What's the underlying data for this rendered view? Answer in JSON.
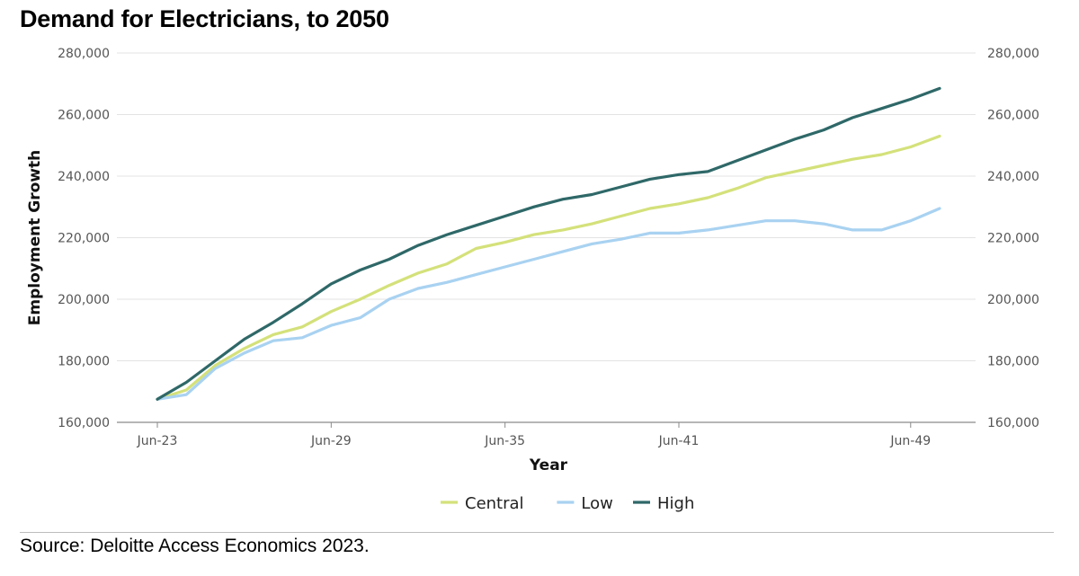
{
  "title": "Demand for Electricians, to 2050",
  "source": "Source: Deloitte Access Economics 2023.",
  "chart_data": {
    "type": "line",
    "title": "Demand for Electricians, to 2050",
    "xlabel": "Year",
    "ylabel": "Employment Growth",
    "x_tick_labels": [
      "Jun-23",
      "Jun-29",
      "Jun-35",
      "Jun-41",
      "Jun-49"
    ],
    "x_tick_years": [
      2023,
      2029,
      2035,
      2041,
      2049
    ],
    "x": [
      2023,
      2024,
      2025,
      2026,
      2027,
      2028,
      2029,
      2030,
      2031,
      2032,
      2033,
      2034,
      2035,
      2036,
      2037,
      2038,
      2039,
      2040,
      2041,
      2042,
      2043,
      2044,
      2045,
      2046,
      2047,
      2048,
      2049,
      2050
    ],
    "ylim": [
      160000,
      280000
    ],
    "y_ticks": [
      160000,
      180000,
      200000,
      220000,
      240000,
      260000,
      280000
    ],
    "y_tick_labels": [
      "160,000",
      "180,000",
      "200,000",
      "220,000",
      "240,000",
      "260,000",
      "280,000"
    ],
    "grid": "horizontal",
    "legend_position": "bottom",
    "series": [
      {
        "name": "Central",
        "color": "#d4e17a",
        "values": [
          167500,
          170500,
          178500,
          184000,
          188500,
          191000,
          196000,
          200000,
          204500,
          208500,
          211500,
          216500,
          218500,
          221000,
          222500,
          224500,
          227000,
          229500,
          231000,
          233000,
          236000,
          239500,
          241500,
          243500,
          245500,
          247000,
          249500,
          253000
        ]
      },
      {
        "name": "Low",
        "color": "#a9d2f1",
        "values": [
          167500,
          169000,
          177500,
          182500,
          186500,
          187500,
          191500,
          194000,
          200000,
          203500,
          205500,
          208000,
          210500,
          213000,
          215500,
          218000,
          219500,
          221500,
          221500,
          222500,
          224000,
          225500,
          225500,
          224500,
          222500,
          222500,
          225500,
          229500
        ]
      },
      {
        "name": "High",
        "color": "#2f6868",
        "values": [
          167500,
          173000,
          180000,
          187000,
          192500,
          198500,
          205000,
          209500,
          213000,
          217500,
          221000,
          224000,
          227000,
          230000,
          232500,
          234000,
          236500,
          239000,
          240500,
          241500,
          245000,
          248500,
          252000,
          255000,
          259000,
          262000,
          265000,
          268500
        ]
      }
    ]
  }
}
